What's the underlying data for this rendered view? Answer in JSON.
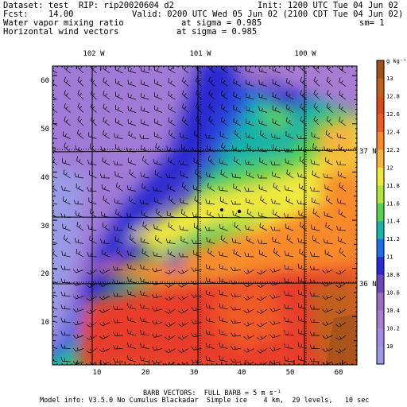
{
  "header": {
    "dataset_line": "Dataset: test  RIP: rip20020604 d2",
    "init_line": "Init: 1200 UTC Tue 04 Jun 02",
    "fcst_line": "Fcst:    14.00",
    "valid_line": "Valid: 0200 UTC Wed 05 Jun 02 (2100 CDT Tue 04 Jun 02)",
    "field1_line": "Water vapor mixing ratio",
    "sigma1_line": "at sigma = 0.985",
    "sm_line": "sm= 1",
    "field2_line": "Horizontal wind vectors",
    "sigma2_line": "at sigma = 0.985"
  },
  "map": {
    "x_ticks": [
      "10",
      "20",
      "30",
      "40",
      "50",
      "60"
    ],
    "y_ticks": [
      "10",
      "20",
      "30",
      "40",
      "50",
      "60"
    ],
    "longitude_labels": [
      "102 W",
      "101 W",
      "100 W"
    ],
    "latitude_labels": [
      "37 N",
      "36 N"
    ]
  },
  "colorbar": {
    "unit": "g kg⁻¹",
    "levels": [
      "10",
      "10.2",
      "10.4",
      "10.6",
      "10.8",
      "11",
      "11.2",
      "11.4",
      "11.6",
      "11.8",
      "12",
      "12.2",
      "12.4",
      "12.6",
      "12.8",
      "13"
    ],
    "colors": [
      "#9a9ae6",
      "#a08ce6",
      "#a77cd2",
      "#9a6cc4",
      "#6b48b8",
      "#2a2ad0",
      "#1e6ee8",
      "#18b4a6",
      "#5ad050",
      "#b4e43c",
      "#f0e83c",
      "#f8b43c",
      "#f88a2c",
      "#f05a28",
      "#d84a1c",
      "#c0601c",
      "#a0501a"
    ]
  },
  "footer": {
    "barb_line": "BARB VECTORS:  FULL BARB = 5 m s⁻¹",
    "model_line": "Model info: V3.5.0 No Cumulus Blackadar  Simple ice    4 km,  29 levels,   10 sec"
  },
  "colors": {
    "purple": "#a07ad6",
    "blue": "#2a2ad0",
    "green": "#3cc850",
    "yellow": "#f0e83c",
    "orange": "#f88a2c",
    "red": "#e83e2a",
    "brown": "#a0501a"
  }
}
